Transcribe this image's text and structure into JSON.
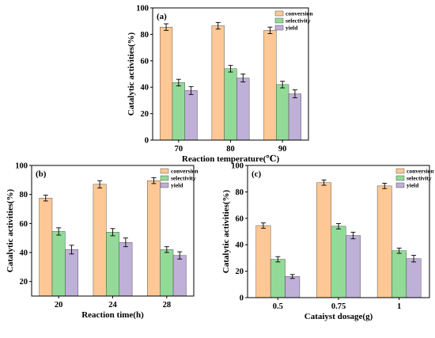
{
  "colors": {
    "conversion": "#fdc895",
    "selectivity": "#93da98",
    "yield": "#bfb0d8",
    "bar_edge": "#333333"
  },
  "chart_data": [
    {
      "type": "bar",
      "panel_label": "(a)",
      "categories": [
        "70",
        "80",
        "90"
      ],
      "xlabel": "Reaction temperature(℃)",
      "ylabel": "Catalytic activities(%)",
      "ylim": [
        0,
        100
      ],
      "yticks": [
        "0",
        "20",
        "40",
        "60",
        "80",
        "100"
      ],
      "legend": "top-right",
      "series": [
        {
          "name": "conversion",
          "values": [
            85.5,
            86.5,
            83
          ],
          "errors": [
            2.5,
            2.5,
            2.5
          ]
        },
        {
          "name": "selectivity",
          "values": [
            43.5,
            54,
            42
          ],
          "errors": [
            2.5,
            2.5,
            2.5
          ]
        },
        {
          "name": "yield",
          "values": [
            37.5,
            47,
            35
          ],
          "errors": [
            3,
            3,
            3
          ]
        }
      ]
    },
    {
      "type": "bar",
      "panel_label": "(b)",
      "categories": [
        "20",
        "24",
        "28"
      ],
      "xlabel": "Reaction time(h)",
      "ylabel": "Catalytic activities(%)",
      "ylim": [
        0,
        100
      ],
      "yticks": [
        "20",
        "40",
        "60",
        "80",
        "100"
      ],
      "legend": "top-right",
      "series": [
        {
          "name": "conversion",
          "values": [
            77.5,
            87,
            89.5
          ],
          "errors": [
            2,
            2.5,
            2
          ]
        },
        {
          "name": "selectivity",
          "values": [
            54.5,
            54,
            42
          ],
          "errors": [
            2.5,
            2.5,
            2
          ]
        },
        {
          "name": "yield",
          "values": [
            42,
            47,
            38
          ],
          "errors": [
            3,
            3,
            2.5
          ]
        }
      ]
    },
    {
      "type": "bar",
      "panel_label": "(c)",
      "categories": [
        "0.5",
        "0.75",
        "1"
      ],
      "xlabel": "Cataiyst dosage(g)",
      "ylabel": "Catalytic activities(%)",
      "ylim": [
        0,
        100
      ],
      "yticks": [
        "0",
        "20",
        "40",
        "60",
        "80",
        "100"
      ],
      "legend": "top-right",
      "series": [
        {
          "name": "conversion",
          "values": [
            54.5,
            87,
            84.5
          ],
          "errors": [
            2,
            2,
            2
          ]
        },
        {
          "name": "selectivity",
          "values": [
            29,
            54,
            35.5
          ],
          "errors": [
            2,
            2,
            2
          ]
        },
        {
          "name": "yield",
          "values": [
            16,
            47,
            29.5
          ],
          "errors": [
            1.5,
            2.5,
            2.5
          ]
        }
      ]
    }
  ]
}
